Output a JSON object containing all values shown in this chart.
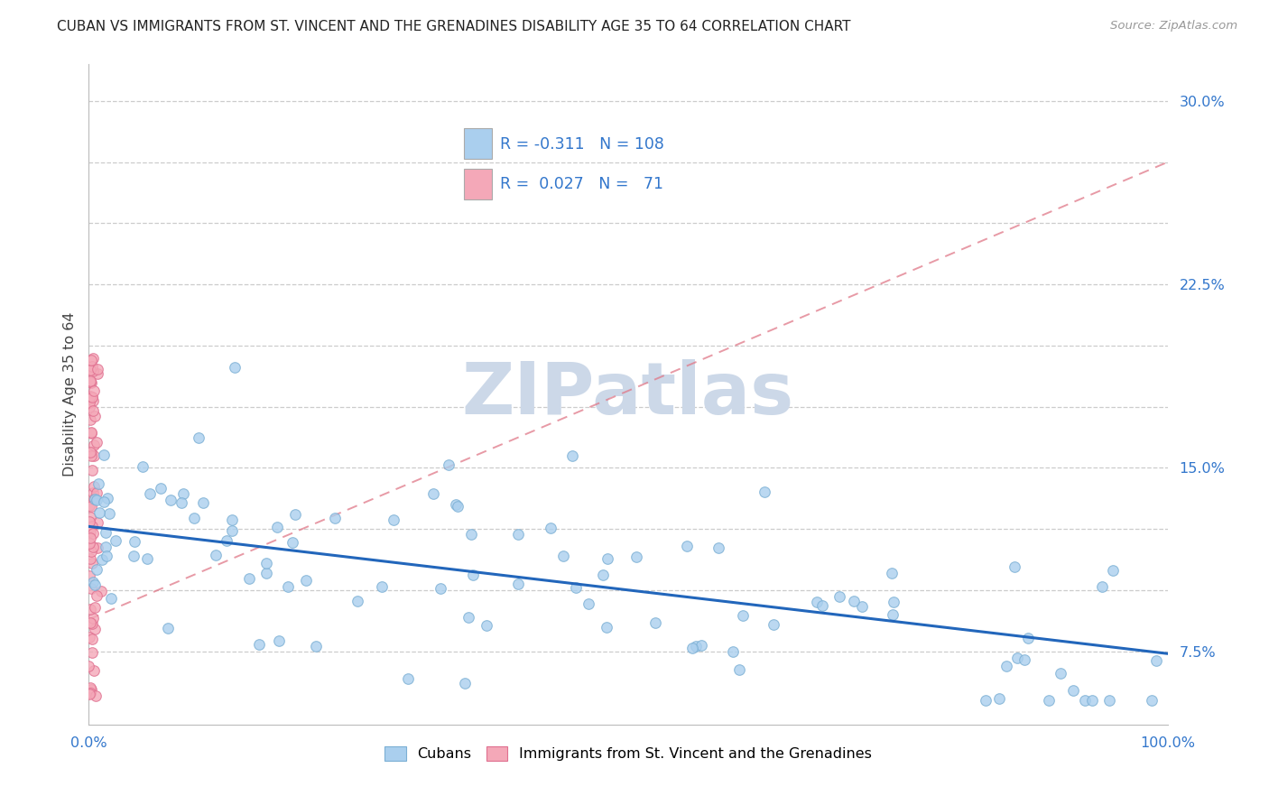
{
  "title": "CUBAN VS IMMIGRANTS FROM ST. VINCENT AND THE GRENADINES DISABILITY AGE 35 TO 64 CORRELATION CHART",
  "source": "Source: ZipAtlas.com",
  "ylabel": "Disability Age 35 to 64",
  "y_tick_vals": [
    0.075,
    0.1,
    0.125,
    0.15,
    0.175,
    0.2,
    0.225,
    0.25,
    0.275,
    0.3
  ],
  "y_tick_labels": [
    "7.5%",
    "",
    "",
    "15.0%",
    "",
    "",
    "22.5%",
    "",
    "",
    "30.0%"
  ],
  "xlim": [
    0.0,
    1.0
  ],
  "ylim": [
    0.045,
    0.315
  ],
  "cubans_N": 108,
  "svg_N": 71,
  "cubans_color": "#aacfee",
  "cubans_edge_color": "#7bafd4",
  "cubans_line_color": "#2266bb",
  "svg_color": "#f4a8b8",
  "svg_edge_color": "#e07090",
  "svg_line_color": "#e07888",
  "watermark_color": "#ccd8e8",
  "legend_label1": "Cubans",
  "legend_label2": "Immigrants from St. Vincent and the Grenadines",
  "cubans_line_x0": 0.0,
  "cubans_line_y0": 0.126,
  "cubans_line_x1": 1.0,
  "cubans_line_y1": 0.074,
  "svg_line_x0": 0.0,
  "svg_line_y0": 0.088,
  "svg_line_x1": 1.0,
  "svg_line_y1": 0.275
}
